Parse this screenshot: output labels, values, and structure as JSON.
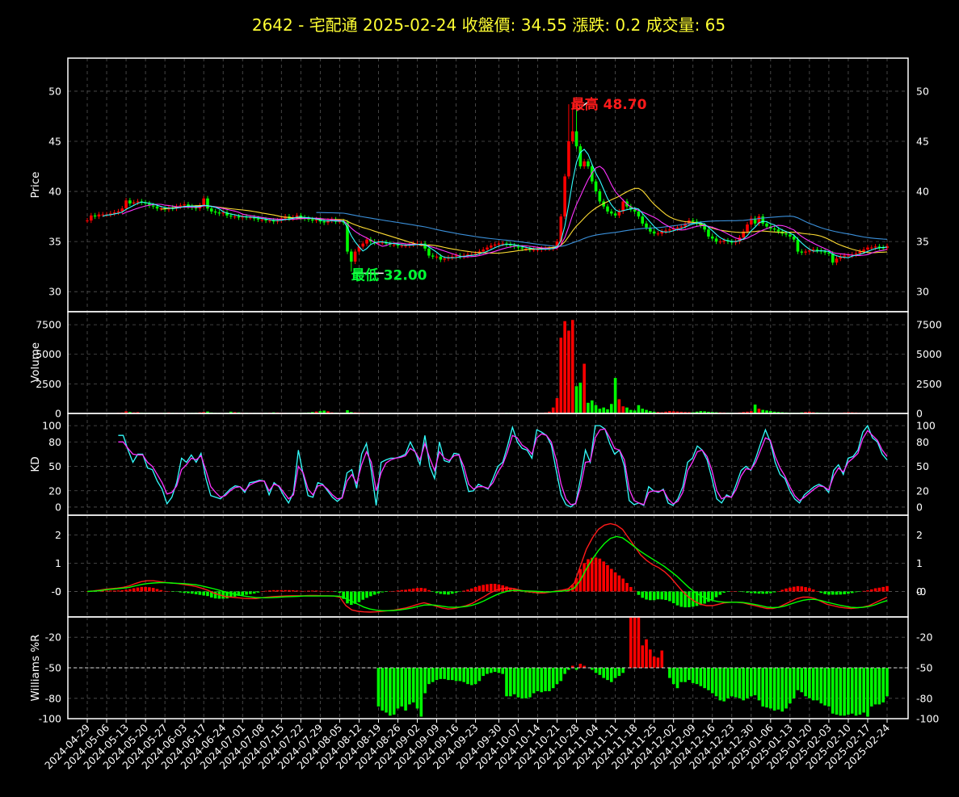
{
  "header": {
    "title": "2642 - 宅配通  2025-02-24  收盤價: 34.55  漲跌: 0.2  成交量: 65"
  },
  "chart_data": {
    "type": "candlestick-multi-panel",
    "x_tick_labels": [
      "2024-04-29",
      "2024-05-06",
      "2024-05-13",
      "2024-05-20",
      "2024-05-27",
      "2024-06-03",
      "2024-06-17",
      "2024-06-24",
      "2024-07-01",
      "2024-07-08",
      "2024-07-15",
      "2024-07-22",
      "2024-07-29",
      "2024-08-05",
      "2024-08-12",
      "2024-08-19",
      "2024-08-26",
      "2024-09-02",
      "2024-09-09",
      "2024-09-16",
      "2024-09-23",
      "2024-09-30",
      "2024-10-07",
      "2024-10-14",
      "2024-10-21",
      "2024-10-28",
      "2024-11-04",
      "2024-11-11",
      "2024-11-18",
      "2024-11-25",
      "2024-12-02",
      "2024-12-09",
      "2024-12-16",
      "2024-12-23",
      "2024-12-30",
      "2025-01-06",
      "2025-01-13",
      "2025-01-20",
      "2025-02-03",
      "2025-02-10",
      "2025-02-17",
      "2025-02-24"
    ],
    "colors": {
      "up": "#ff0000",
      "down": "#00ff00",
      "ma_short": "#33ffff",
      "ma_mid": "#ff33ff",
      "ma_long": "#ffdd33",
      "ma_longest": "#3a8fd9",
      "k_line": "#33ffff",
      "d_line": "#ff33ff",
      "macd_dif": "#ff1a1a",
      "macd_signal": "#00ff00"
    },
    "price_panel": {
      "ylabel": "Price",
      "ylim": [
        28,
        53.3
      ],
      "yticks": [
        "30",
        "35",
        "40",
        "45",
        "50"
      ],
      "high_label": "最高 48.70",
      "low_label": "最低 32.00",
      "high_value": 48.7,
      "low_value": 32.0
    },
    "volume_panel": {
      "ylabel": "Volume",
      "ylim": [
        0,
        8600
      ],
      "yticks": [
        "0",
        "2500",
        "5000",
        "7500"
      ]
    },
    "kd_panel": {
      "ylabel": "KD",
      "ylim": [
        -10,
        115
      ],
      "yticks": [
        "0",
        "20",
        "50",
        "80",
        "100"
      ],
      "reference_lines": [
        20,
        50,
        80
      ]
    },
    "macd_panel": {
      "ylabel": "",
      "ylim": [
        -0.9,
        2.7
      ],
      "yticks": [
        "-0",
        "0",
        "1",
        "2"
      ]
    },
    "williams_panel": {
      "ylabel": "Williams %R",
      "ylim": [
        -100,
        0
      ],
      "yticks": [
        "-100",
        "-80",
        "-50",
        "-20"
      ],
      "reference_line": -50
    },
    "price_series": {
      "close": [
        37.1,
        37.6,
        37.5,
        37.7,
        37.7,
        37.7,
        37.8,
        37.9,
        38.0,
        38.3,
        39.1,
        38.8,
        38.9,
        39.0,
        38.9,
        38.8,
        38.6,
        38.5,
        38.3,
        38.3,
        38.2,
        38.4,
        38.3,
        38.5,
        38.6,
        38.7,
        38.5,
        38.4,
        38.3,
        38.6,
        39.3,
        38.3,
        38.0,
        37.9,
        37.8,
        37.9,
        37.6,
        37.5,
        37.5,
        37.4,
        37.5,
        37.4,
        37.4,
        37.3,
        37.2,
        37.2,
        37.1,
        37.1,
        37.0,
        37.1,
        37.3,
        37.5,
        37.3,
        37.4,
        37.6,
        37.4,
        37.3,
        37.2,
        37.1,
        37.2,
        37.0,
        36.9,
        37.1,
        37.2,
        37.0,
        37.0,
        36.9,
        34.0,
        33.0,
        34.0,
        34.5,
        34.8,
        35.2,
        35.0,
        34.9,
        34.9,
        34.9,
        34.8,
        34.7,
        34.7,
        34.6,
        34.6,
        34.6,
        34.7,
        34.8,
        34.8,
        34.8,
        34.3,
        33.6,
        33.5,
        33.5,
        33.2,
        33.3,
        33.4,
        33.5,
        33.6,
        33.5,
        33.6,
        33.7,
        33.7,
        33.8,
        34.0,
        34.2,
        34.4,
        34.6,
        34.7,
        34.8,
        34.8,
        34.7,
        34.6,
        34.5,
        34.4,
        34.3,
        34.3,
        34.2,
        34.2,
        34.2,
        34.3,
        34.3,
        34.3,
        34.4,
        35.0,
        37.5,
        41.5,
        45.0,
        46.0,
        44.5,
        42.5,
        43.0,
        42.5,
        41.0,
        40.0,
        39.0,
        38.5,
        38.0,
        37.8,
        37.6,
        38.0,
        39.0,
        38.5,
        38.2,
        38.0,
        37.5,
        36.8,
        36.4,
        36.0,
        35.8,
        35.8,
        36.0,
        36.1,
        36.2,
        36.3,
        36.4,
        36.5,
        36.8,
        37.1,
        37.0,
        36.8,
        36.6,
        36.2,
        35.5,
        35.3,
        35.0,
        35.0,
        35.1,
        35.0,
        34.9,
        35.0,
        35.4,
        36.0,
        36.7,
        37.3,
        36.8,
        37.5,
        36.8,
        36.5,
        36.3,
        36.2,
        36.0,
        35.8,
        35.7,
        35.5,
        35.2,
        34.0,
        33.9,
        34.0,
        34.1,
        34.2,
        34.1,
        34.0,
        33.9,
        33.8,
        32.9,
        33.3,
        33.5,
        33.6,
        33.6,
        33.7,
        33.8,
        34.0,
        34.2,
        34.4,
        34.4,
        34.5,
        34.4,
        34.35,
        34.55
      ],
      "ma_short_window": 5,
      "ma_mid_window": 10,
      "ma_long_window": 20,
      "ma_longest_window": 60
    },
    "volume_series": [
      30,
      20,
      15,
      25,
      20,
      20,
      30,
      35,
      60,
      80,
      180,
      120,
      90,
      110,
      70,
      60,
      50,
      40,
      45,
      60,
      70,
      80,
      60,
      50,
      40,
      45,
      60,
      55,
      70,
      90,
      120,
      160,
      80,
      60,
      50,
      40,
      60,
      150,
      110,
      90,
      70,
      60,
      50,
      45,
      40,
      55,
      60,
      70,
      90,
      80,
      60,
      50,
      40,
      45,
      50,
      60,
      70,
      80,
      120,
      160,
      200,
      240,
      180,
      90,
      70,
      60,
      50,
      270,
      120,
      90,
      80,
      70,
      60,
      50,
      45,
      40,
      35,
      30,
      40,
      35,
      30,
      25,
      30,
      35,
      40,
      45,
      30,
      25,
      20,
      30,
      35,
      40,
      30,
      25,
      20,
      35,
      40,
      45,
      50,
      55,
      60,
      50,
      40,
      35,
      30,
      40,
      45,
      50,
      55,
      60,
      50,
      40,
      30,
      35,
      40,
      45,
      50,
      60,
      80,
      150,
      500,
      1300,
      6400,
      7800,
      7000,
      7900,
      2300,
      2600,
      4200,
      900,
      1100,
      700,
      400,
      500,
      350,
      800,
      3000,
      1200,
      600,
      500,
      300,
      250,
      700,
      400,
      300,
      200,
      150,
      120,
      100,
      150,
      200,
      180,
      160,
      140,
      120,
      110,
      100,
      150,
      200,
      180,
      140,
      120,
      100,
      90,
      80,
      70,
      60,
      50,
      80,
      120,
      150,
      200,
      750,
      400,
      300,
      250,
      200,
      150,
      120,
      100,
      80,
      70,
      60,
      50,
      90,
      120,
      150,
      100,
      80,
      70,
      60,
      50,
      45,
      40,
      60,
      80,
      100,
      90,
      80,
      70,
      60,
      65
    ],
    "kd_series": {
      "k": [
        88,
        88,
        70,
        55,
        65,
        65,
        48,
        46,
        32,
        22,
        4,
        12,
        30,
        60,
        55,
        64,
        55,
        66,
        35,
        14,
        12,
        10,
        16,
        22,
        26,
        25,
        18,
        30,
        31,
        33,
        32,
        15,
        30,
        25,
        14,
        5,
        18,
        70,
        40,
        14,
        12,
        30,
        28,
        20,
        12,
        7,
        12,
        42,
        46,
        23,
        65,
        78,
        45,
        2,
        55,
        58,
        60,
        60,
        62,
        65,
        80,
        68,
        52,
        88,
        50,
        35,
        80,
        57,
        55,
        66,
        65,
        42,
        19,
        20,
        28,
        25,
        22,
        35,
        50,
        55,
        75,
        98,
        80,
        72,
        70,
        60,
        95,
        92,
        88,
        76,
        45,
        15,
        3,
        0,
        5,
        35,
        70,
        55,
        100,
        100,
        96,
        78,
        65,
        70,
        50,
        8,
        3,
        5,
        2,
        25,
        20,
        18,
        22,
        5,
        2,
        10,
        25,
        55,
        60,
        75,
        70,
        58,
        35,
        10,
        5,
        15,
        12,
        28,
        45,
        50,
        45,
        60,
        78,
        95,
        80,
        55,
        40,
        35,
        20,
        10,
        5,
        15,
        20,
        25,
        28,
        25,
        18,
        45,
        52,
        40,
        60,
        62,
        70,
        92,
        100,
        85,
        80,
        65,
        58
      ],
      "d": [
        80,
        80,
        72,
        65,
        64,
        64,
        55,
        50,
        40,
        30,
        16,
        18,
        26,
        46,
        52,
        60,
        58,
        63,
        45,
        25,
        18,
        12,
        14,
        20,
        24,
        25,
        20,
        27,
        30,
        32,
        32,
        20,
        28,
        26,
        18,
        10,
        15,
        50,
        42,
        22,
        15,
        26,
        27,
        22,
        15,
        10,
        11,
        32,
        40,
        29,
        52,
        68,
        55,
        20,
        42,
        54,
        58,
        60,
        61,
        63,
        72,
        68,
        58,
        78,
        60,
        45,
        68,
        60,
        57,
        63,
        64,
        50,
        28,
        22,
        25,
        25,
        23,
        30,
        43,
        52,
        68,
        88,
        85,
        76,
        72,
        65,
        85,
        90,
        88,
        80,
        58,
        28,
        10,
        3,
        4,
        25,
        55,
        56,
        85,
        95,
        96,
        85,
        72,
        70,
        58,
        22,
        8,
        5,
        3,
        18,
        20,
        19,
        21,
        10,
        4,
        7,
        18,
        45,
        55,
        68,
        70,
        62,
        45,
        20,
        10,
        13,
        12,
        22,
        38,
        47,
        46,
        55,
        70,
        85,
        82,
        62,
        48,
        38,
        25,
        14,
        8,
        12,
        17,
        22,
        26,
        25,
        21,
        38,
        48,
        43,
        55,
        60,
        66,
        84,
        94,
        88,
        82,
        70,
        62
      ]
    },
    "macd_series": {
      "dif": [
        0,
        0.02,
        0.05,
        0.08,
        0.1,
        0.12,
        0.15,
        0.2,
        0.28,
        0.35,
        0.38,
        0.38,
        0.35,
        0.32,
        0.3,
        0.28,
        0.25,
        0.22,
        0.18,
        0.12,
        0.05,
        -0.05,
        -0.12,
        -0.18,
        -0.2,
        -0.22,
        -0.24,
        -0.25,
        -0.25,
        -0.22,
        -0.2,
        -0.18,
        -0.17,
        -0.16,
        -0.15,
        -0.15,
        -0.15,
        -0.14,
        -0.14,
        -0.15,
        -0.15,
        -0.16,
        -0.2,
        -0.5,
        -0.65,
        -0.7,
        -0.72,
        -0.73,
        -0.72,
        -0.7,
        -0.68,
        -0.66,
        -0.62,
        -0.58,
        -0.52,
        -0.45,
        -0.4,
        -0.45,
        -0.52,
        -0.58,
        -0.62,
        -0.6,
        -0.55,
        -0.5,
        -0.42,
        -0.3,
        -0.18,
        -0.05,
        0.05,
        0.1,
        0.12,
        0.1,
        0.05,
        0,
        -0.02,
        -0.05,
        -0.05,
        -0.02,
        0.02,
        0.05,
        0.1,
        0.3,
        0.9,
        1.5,
        1.9,
        2.2,
        2.35,
        2.4,
        2.35,
        2.2,
        1.9,
        1.6,
        1.3,
        1.1,
        0.95,
        0.85,
        0.7,
        0.5,
        0.25,
        0,
        -0.2,
        -0.35,
        -0.45,
        -0.5,
        -0.5,
        -0.45,
        -0.4,
        -0.38,
        -0.38,
        -0.4,
        -0.45,
        -0.5,
        -0.55,
        -0.6,
        -0.6,
        -0.55,
        -0.45,
        -0.35,
        -0.25,
        -0.2,
        -0.2,
        -0.25,
        -0.35,
        -0.45,
        -0.5,
        -0.55,
        -0.58,
        -0.6,
        -0.58,
        -0.55,
        -0.5,
        -0.4,
        -0.3,
        -0.2
      ],
      "signal": [
        0,
        0.01,
        0.03,
        0.06,
        0.08,
        0.1,
        0.12,
        0.15,
        0.2,
        0.25,
        0.28,
        0.3,
        0.31,
        0.31,
        0.3,
        0.29,
        0.28,
        0.26,
        0.24,
        0.2,
        0.15,
        0.1,
        0.04,
        -0.02,
        -0.07,
        -0.12,
        -0.16,
        -0.19,
        -0.21,
        -0.22,
        -0.22,
        -0.21,
        -0.2,
        -0.19,
        -0.18,
        -0.17,
        -0.16,
        -0.16,
        -0.16,
        -0.16,
        -0.16,
        -0.16,
        -0.17,
        -0.25,
        -0.35,
        -0.45,
        -0.55,
        -0.62,
        -0.66,
        -0.68,
        -0.68,
        -0.67,
        -0.65,
        -0.62,
        -0.58,
        -0.53,
        -0.48,
        -0.47,
        -0.49,
        -0.52,
        -0.55,
        -0.56,
        -0.55,
        -0.53,
        -0.49,
        -0.42,
        -0.33,
        -0.22,
        -0.12,
        -0.04,
        0.02,
        0.04,
        0.03,
        0.02,
        0.01,
        0,
        -0.01,
        -0.01,
        0,
        0.01,
        0.04,
        0.12,
        0.4,
        0.8,
        1.15,
        1.45,
        1.7,
        1.88,
        1.95,
        1.9,
        1.75,
        1.58,
        1.42,
        1.28,
        1.15,
        1.02,
        0.88,
        0.72,
        0.55,
        0.35,
        0.15,
        -0.02,
        -0.15,
        -0.25,
        -0.32,
        -0.36,
        -0.38,
        -0.38,
        -0.38,
        -0.39,
        -0.42,
        -0.46,
        -0.5,
        -0.55,
        -0.57,
        -0.56,
        -0.51,
        -0.44,
        -0.37,
        -0.31,
        -0.28,
        -0.28,
        -0.32,
        -0.38,
        -0.43,
        -0.48,
        -0.52,
        -0.56,
        -0.57,
        -0.56,
        -0.53,
        -0.47,
        -0.39,
        -0.32
      ],
      "start_index": 0
    },
    "williams_series": [
      -50,
      -50,
      -50,
      -50,
      -50,
      -50,
      -50,
      -50,
      -50,
      -50,
      -50,
      -50,
      -50,
      -50,
      -50,
      -50,
      -50,
      -50,
      -50,
      -50,
      -50,
      -50,
      -50,
      -50,
      -50,
      -50,
      -50,
      -50,
      -50,
      -50,
      -50,
      -50,
      -50,
      -50,
      -50,
      -50,
      -50,
      -50,
      -50,
      -50,
      -50,
      -50,
      -50,
      -50,
      -50,
      -50,
      -50,
      -50,
      -50,
      -50,
      -50,
      -50,
      -50,
      -50,
      -50,
      -50,
      -50,
      -50,
      -50,
      -50,
      -50,
      -50,
      -50,
      -50,
      -50,
      -50,
      -50,
      -50,
      -50,
      -50,
      -50,
      -50,
      -50,
      -50,
      -50,
      -88,
      -92,
      -94,
      -97,
      -96,
      -90,
      -88,
      -92,
      -86,
      -84,
      -90,
      -98,
      -75,
      -66,
      -64,
      -62,
      -61,
      -61,
      -62,
      -62,
      -63,
      -63,
      -64,
      -66,
      -67,
      -66,
      -63,
      -58,
      -56,
      -55,
      -54,
      -55,
      -56,
      -78,
      -78,
      -76,
      -79,
      -80,
      -80,
      -79,
      -75,
      -73,
      -74,
      -73,
      -73,
      -70,
      -66,
      -63,
      -56,
      -52,
      -48,
      -52,
      -46,
      -48,
      -50,
      -52,
      -55,
      -57,
      -60,
      -62,
      -64,
      -60,
      -58,
      -55,
      -50,
      0,
      0,
      0,
      -28,
      -22,
      -32,
      -39,
      -40,
      -33,
      -50,
      -60,
      -66,
      -70,
      -64,
      -64,
      -62,
      -65,
      -66,
      -68,
      -70,
      -72,
      -75,
      -78,
      -82,
      -83,
      -80,
      -78,
      -79,
      -80,
      -82,
      -80,
      -78,
      -77,
      -82,
      -88,
      -89,
      -90,
      -92,
      -91,
      -93,
      -90,
      -85,
      -80,
      -72,
      -74,
      -78,
      -80,
      -82,
      -82,
      -85,
      -87,
      -88,
      -95,
      -96,
      -97,
      -97,
      -96,
      -95,
      -97,
      -96,
      -94,
      -98,
      -88,
      -86,
      -86,
      -84,
      -78,
      -70,
      -68,
      -70,
      -68,
      -66,
      -64
    ]
  }
}
